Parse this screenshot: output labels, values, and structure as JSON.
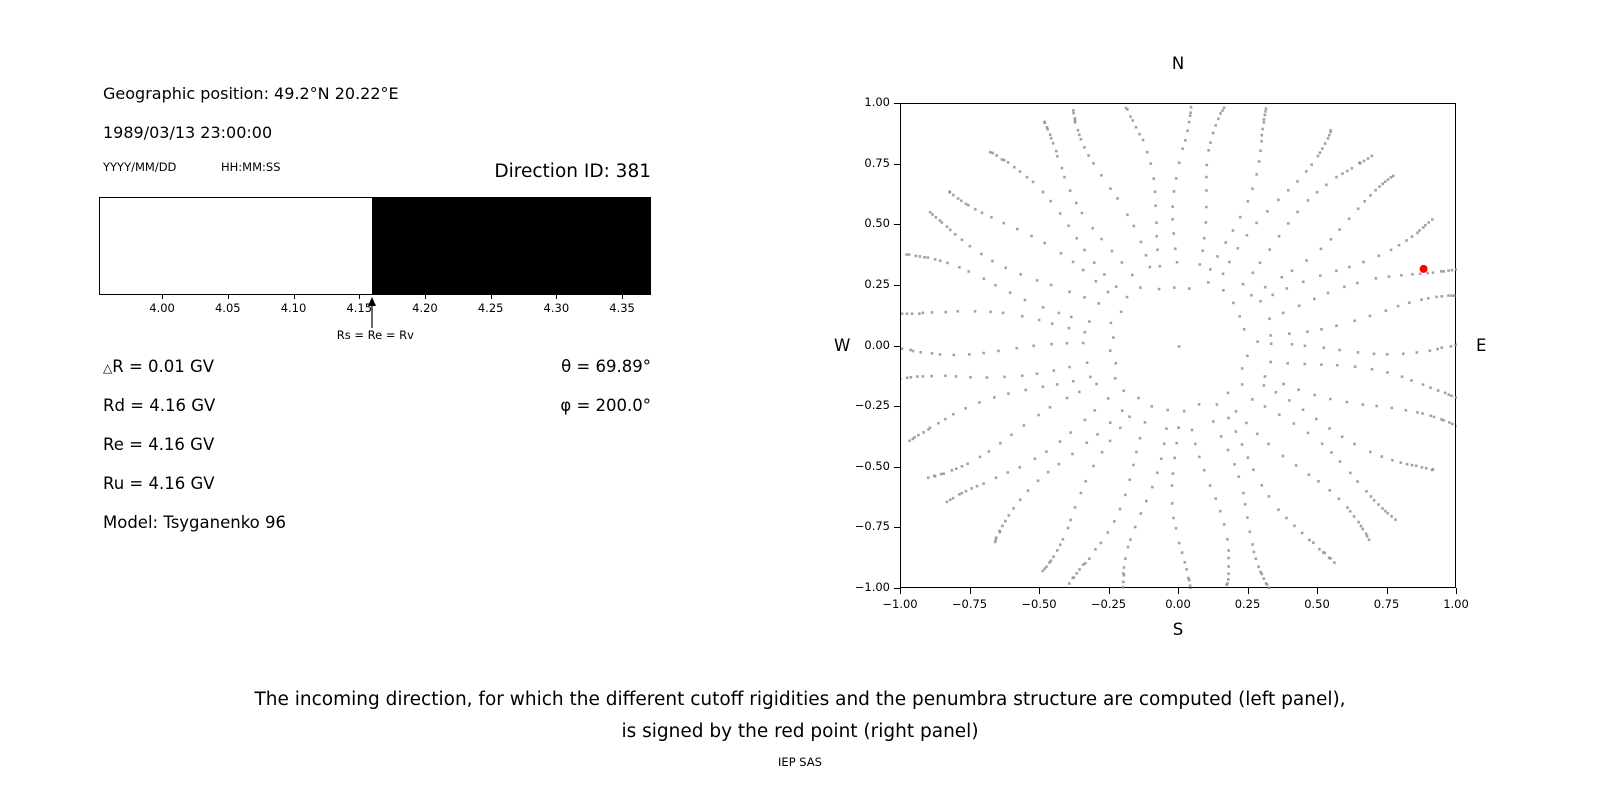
{
  "left_panel": {
    "geo_position": "Geographic position: 49.2°N 20.22°E",
    "datetime": "1989/03/13 23:00:00",
    "date_format_label": "YYYY/MM/DD",
    "time_format_label": "HH:MM:SS",
    "direction_id": "Direction ID: 381",
    "delta_symbol": "△",
    "delta_rest": "R = 0.01 GV",
    "rd": "Rd = 4.16 GV",
    "re": "Re = 4.16 GV",
    "ru": "Ru = 4.16 GV",
    "model": "Model: Tsyganenko 96",
    "theta": "θ = 69.89°",
    "phi": "φ = 200.0°"
  },
  "right_panel": {
    "north_label": "N",
    "south_label": "S",
    "east_label": "E",
    "west_label": "W"
  },
  "caption": {
    "line1": "The incoming direction, for which the different cutoff rigidities and the penumbra structure are computed (left panel),",
    "line2": "is signed by the red point (right panel)",
    "credit": "IEP SAS"
  },
  "chart_data": [
    {
      "type": "bar",
      "title": "Penumbra structure (left panel)",
      "xlim": [
        3.952,
        4.372
      ],
      "x_ticks": [
        4.0,
        4.05,
        4.1,
        4.15,
        4.2,
        4.25,
        4.3,
        4.35
      ],
      "x_tick_labels": [
        "4.00",
        "4.05",
        "4.10",
        "4.15",
        "4.20",
        "4.25",
        "4.30",
        "4.35"
      ],
      "regions": [
        {
          "from": 3.952,
          "to": 4.16,
          "color": "#ffffff",
          "meaning": "allowed"
        },
        {
          "from": 4.16,
          "to": 4.372,
          "color": "#000000",
          "meaning": "forbidden"
        }
      ],
      "arrow": {
        "x": 4.16,
        "label": "Rs = Re = Rv"
      },
      "cutoff_values": {
        "dR": 0.01,
        "Rd": 4.16,
        "Re": 4.16,
        "Ru": 4.16,
        "unit": "GV"
      }
    },
    {
      "type": "scatter",
      "title": "Incoming direction map (right panel)",
      "xlim": [
        -1.0,
        1.0
      ],
      "ylim": [
        -1.0,
        1.0
      ],
      "x_tick_values": [
        -1.0,
        -0.75,
        -0.5,
        -0.25,
        0.0,
        0.25,
        0.5,
        0.75,
        1.0
      ],
      "x_tick_labels": [
        "−1.00",
        "−0.75",
        "−0.50",
        "−0.25",
        "0.00",
        "0.25",
        "0.50",
        "0.75",
        "1.00"
      ],
      "y_tick_values": [
        1.0,
        0.75,
        0.5,
        0.25,
        0.0,
        -0.25,
        -0.5,
        -0.75,
        -1.0
      ],
      "y_tick_labels": [
        "1.00",
        "0.75",
        "0.50",
        "0.25",
        "0.00",
        "−0.25",
        "−0.50",
        "−0.75",
        "−1.00"
      ],
      "axis_titles": {
        "top": "N",
        "bottom": "S",
        "left": "W",
        "right": "E"
      },
      "dot_color": "#8c8c8c",
      "red_point": {
        "x": 0.88,
        "y": 0.32,
        "color": "#ff0000",
        "theta_deg": 69.89,
        "phi_deg": 200.0,
        "direction_id": 381
      },
      "pattern": {
        "center_dot": true,
        "inner_ring": {
          "radius": 0.26,
          "count": 28,
          "angle_offset": 4
        },
        "spoke_angles_deg": [
          0,
          10,
          20,
          30,
          40,
          50,
          60,
          70,
          80,
          90,
          100,
          110,
          120,
          130,
          140,
          150,
          160,
          170,
          180,
          190,
          200,
          210,
          220,
          230,
          240,
          250,
          260,
          270,
          280,
          290,
          300,
          310,
          320,
          330,
          340,
          350
        ],
        "spoke_radii": [
          0.34,
          0.4,
          0.46,
          0.52,
          0.58,
          0.645,
          0.7,
          0.755,
          0.81,
          0.855,
          0.895,
          0.925,
          0.95,
          0.97,
          0.99,
          1.005,
          1.02,
          1.035,
          1.05
        ],
        "wobble_deg": 2.5
      }
    }
  ]
}
